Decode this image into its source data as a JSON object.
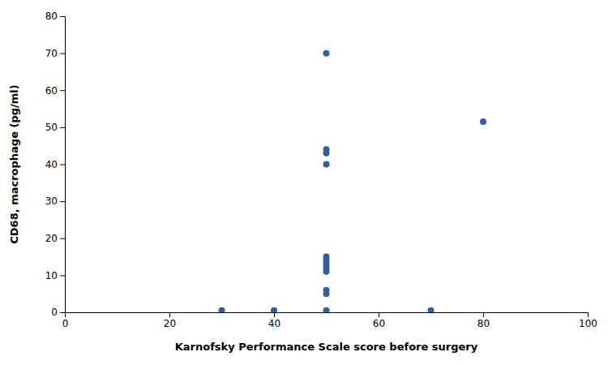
{
  "chart_data": {
    "type": "scatter",
    "xlabel": "Karnofsky Performance Scale score before surgery",
    "ylabel": "CD68, macrophage (pg/ml)",
    "x": [
      30,
      40,
      50,
      50,
      50,
      50,
      50,
      50,
      50,
      50,
      50,
      50,
      50,
      50,
      70,
      80
    ],
    "y": [
      0.5,
      0.5,
      70,
      44,
      43,
      40,
      15,
      14,
      13,
      12,
      11,
      6,
      5,
      0.5,
      0.5,
      51.5
    ],
    "color": "#2E5FA3",
    "marker": "circle",
    "xlim": [
      0,
      100
    ],
    "ylim": [
      0,
      80
    ],
    "xticks": [
      0,
      20,
      40,
      60,
      80,
      100
    ],
    "yticks": [
      0,
      10,
      20,
      30,
      40,
      50,
      60,
      70,
      80
    ],
    "grid": false
  }
}
